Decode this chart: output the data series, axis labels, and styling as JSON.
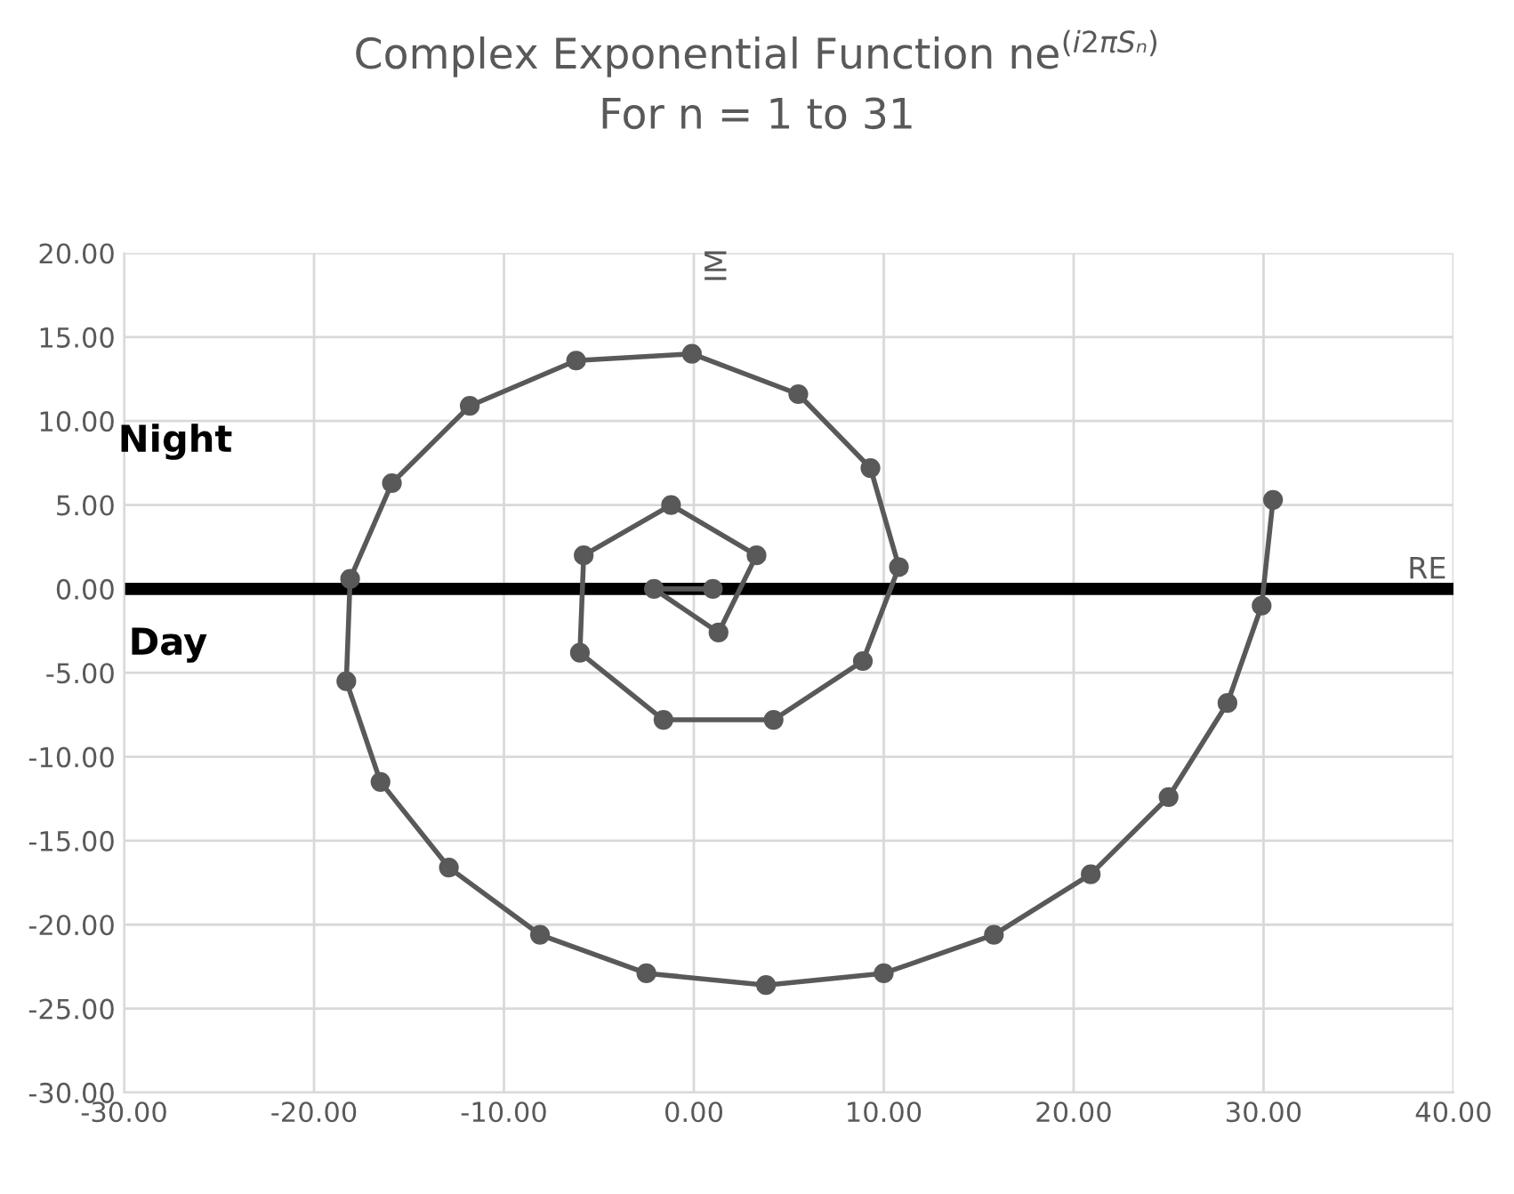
{
  "chart_data": {
    "type": "line",
    "title": "Complex Exponential Function ne$^{(i2πSₙ)}$",
    "subtitle": "For n = 1 to 31",
    "xlabel": "RE",
    "ylabel": "IM",
    "annotations": [
      "Night",
      "Day"
    ],
    "x": [
      1.0,
      -2.1,
      1.3,
      3.3,
      -1.2,
      -5.8,
      -6.0,
      -1.6,
      4.2,
      8.9,
      10.8,
      9.3,
      5.5,
      -0.1,
      -6.2,
      -11.8,
      -15.9,
      -18.1,
      -18.3,
      -16.5,
      -12.9,
      -8.1,
      -2.5,
      3.8,
      10.0,
      15.8,
      20.9,
      25.0,
      28.1,
      29.9,
      30.5
    ],
    "series": [
      {
        "color": "#595959",
        "values": [
          0.0,
          0.0,
          -2.6,
          2.0,
          5.0,
          2.0,
          -3.8,
          -7.8,
          -7.8,
          -4.3,
          1.3,
          7.2,
          11.6,
          14.0,
          13.6,
          10.9,
          6.3,
          0.6,
          -5.5,
          -11.5,
          -16.6,
          -20.6,
          -22.9,
          -23.6,
          -22.9,
          -20.6,
          -17.0,
          -12.4,
          -6.8,
          -1.0,
          5.3
        ]
      }
    ],
    "marker": "circle",
    "line_style": "solid",
    "grid": true,
    "legend": false,
    "xlim": [
      -30,
      40
    ],
    "ylim": [
      -30,
      20
    ],
    "xticks": [
      {
        "value": -30,
        "label": "-30.00"
      },
      {
        "value": -20,
        "label": "-20.00"
      },
      {
        "value": -10,
        "label": "-10.00"
      },
      {
        "value": 0,
        "label": "0.00"
      },
      {
        "value": 10,
        "label": "10.00"
      },
      {
        "value": 20,
        "label": "20.00"
      },
      {
        "value": 30,
        "label": "30.00"
      },
      {
        "value": 40,
        "label": "40.00"
      }
    ],
    "yticks": [
      {
        "value": -30,
        "label": "-30.00"
      },
      {
        "value": -25,
        "label": "-25.00"
      },
      {
        "value": -20,
        "label": "-20.00"
      },
      {
        "value": -15,
        "label": "-15.00"
      },
      {
        "value": -10,
        "label": "-10.00"
      },
      {
        "value": -5,
        "label": "-5.00"
      },
      {
        "value": 0,
        "label": "0.00"
      },
      {
        "value": 5,
        "label": "5.00"
      },
      {
        "value": 10,
        "label": "10.00"
      },
      {
        "value": 15,
        "label": "15.00"
      },
      {
        "value": 20,
        "label": "20.00"
      }
    ],
    "ref_lines": [
      {
        "axis": "y",
        "value": 0,
        "color": "#000000",
        "line_style": "solid"
      }
    ]
  }
}
